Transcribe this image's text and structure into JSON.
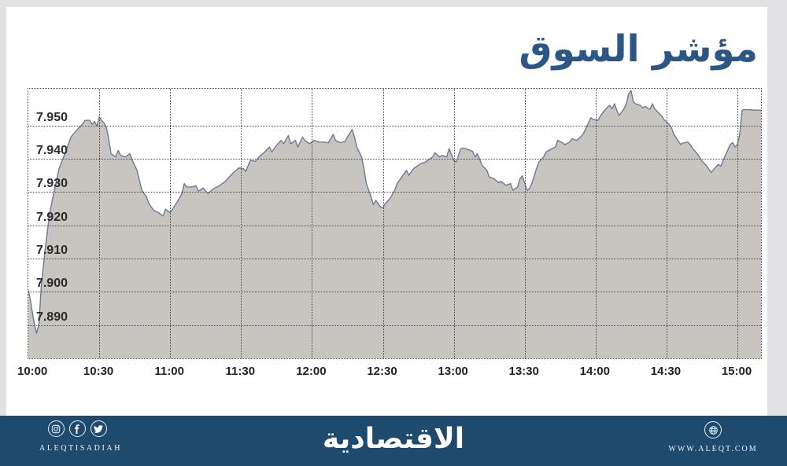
{
  "header": {
    "title": "مؤشر السوق"
  },
  "colors": {
    "page_bg": "#e2e2e4",
    "card_bg": "#ffffff",
    "title_blue": "#2b5685",
    "footer_navy": "#1e4a6e",
    "area_fill": "#c8c4bf",
    "area_stroke": "#6b7994",
    "grid": "#4a4a4a",
    "tick_text": "#2b2b2b"
  },
  "chart_data": {
    "type": "area",
    "title": "مؤشر السوق",
    "xlabel": "",
    "ylabel": "",
    "legend": false,
    "grid": "dotted",
    "x_axis": {
      "unit": "time",
      "range_minutes": [
        0,
        310
      ],
      "ticks": [
        {
          "t": 0,
          "label": "10:00"
        },
        {
          "t": 30,
          "label": "10:30"
        },
        {
          "t": 60,
          "label": "11:00"
        },
        {
          "t": 90,
          "label": "11:30"
        },
        {
          "t": 120,
          "label": "12:00"
        },
        {
          "t": 150,
          "label": "12:30"
        },
        {
          "t": 180,
          "label": "13:00"
        },
        {
          "t": 210,
          "label": "13:30"
        },
        {
          "t": 240,
          "label": "14:00"
        },
        {
          "t": 270,
          "label": "14:30"
        },
        {
          "t": 300,
          "label": "15:00"
        }
      ]
    },
    "y_axis": {
      "range": [
        7.88,
        7.961
      ],
      "ticks": [
        {
          "v": 7.95,
          "label": "7.950"
        },
        {
          "v": 7.94,
          "label": "7.940"
        },
        {
          "v": 7.93,
          "label": "7.930"
        },
        {
          "v": 7.92,
          "label": "7.920"
        },
        {
          "v": 7.91,
          "label": "7.910"
        },
        {
          "v": 7.9,
          "label": "7.900"
        },
        {
          "v": 7.89,
          "label": "7.890"
        }
      ]
    },
    "series": [
      {
        "name": "market-index",
        "points": [
          [
            0,
            7.9005
          ],
          [
            1,
            7.897
          ],
          [
            2,
            7.8925
          ],
          [
            3,
            7.889
          ],
          [
            3.5,
            7.8875
          ],
          [
            4.5,
            7.8905
          ],
          [
            5.5,
            7.902
          ],
          [
            7,
            7.912
          ],
          [
            9,
            7.9235
          ],
          [
            11,
            7.9305
          ],
          [
            13,
            7.937
          ],
          [
            16,
            7.9425
          ],
          [
            18,
            7.9465
          ],
          [
            21,
            7.949
          ],
          [
            23,
            7.9505
          ],
          [
            24,
            7.9515
          ],
          [
            26,
            7.9515
          ],
          [
            27,
            7.9503
          ],
          [
            28,
            7.9512
          ],
          [
            29,
            7.9498
          ],
          [
            30,
            7.9525
          ],
          [
            31,
            7.9515
          ],
          [
            32,
            7.9508
          ],
          [
            33,
            7.9495
          ],
          [
            34,
            7.946
          ],
          [
            35,
            7.9415
          ],
          [
            37,
            7.9405
          ],
          [
            38,
            7.9425
          ],
          [
            39,
            7.941
          ],
          [
            41,
            7.9405
          ],
          [
            43,
            7.9415
          ],
          [
            44,
            7.9395
          ],
          [
            46,
            7.9365
          ],
          [
            48,
            7.9305
          ],
          [
            50,
            7.9285
          ],
          [
            51,
            7.9265
          ],
          [
            53,
            7.9245
          ],
          [
            55,
            7.9238
          ],
          [
            57,
            7.9228
          ],
          [
            58,
            7.9248
          ],
          [
            60,
            7.9238
          ],
          [
            61,
            7.9248
          ],
          [
            63,
            7.927
          ],
          [
            65,
            7.9295
          ],
          [
            66,
            7.9325
          ],
          [
            67,
            7.9315
          ],
          [
            69,
            7.9315
          ],
          [
            71,
            7.9318
          ],
          [
            72,
            7.9302
          ],
          [
            74,
            7.9312
          ],
          [
            76,
            7.9295
          ],
          [
            78,
            7.9308
          ],
          [
            81,
            7.932
          ],
          [
            83,
            7.933
          ],
          [
            85,
            7.9345
          ],
          [
            87,
            7.936
          ],
          [
            89,
            7.9372
          ],
          [
            91,
            7.937
          ],
          [
            92,
            7.9362
          ],
          [
            93,
            7.938
          ],
          [
            94,
            7.9395
          ],
          [
            96,
            7.9392
          ],
          [
            98,
            7.9408
          ],
          [
            100,
            7.942
          ],
          [
            102,
            7.9435
          ],
          [
            103,
            7.942
          ],
          [
            105,
            7.944
          ],
          [
            107,
            7.9455
          ],
          [
            108,
            7.9445
          ],
          [
            110,
            7.947
          ],
          [
            111,
            7.9445
          ],
          [
            113,
            7.9455
          ],
          [
            114,
            7.9435
          ],
          [
            116,
            7.9465
          ],
          [
            117,
            7.9455
          ],
          [
            119,
            7.9445
          ],
          [
            121,
            7.9455
          ],
          [
            123,
            7.945
          ],
          [
            125,
            7.945
          ],
          [
            127,
            7.9448
          ],
          [
            129,
            7.9473
          ],
          [
            130,
            7.9455
          ],
          [
            132,
            7.9448
          ],
          [
            134,
            7.9452
          ],
          [
            135,
            7.9465
          ],
          [
            137,
            7.9488
          ],
          [
            138,
            7.9465
          ],
          [
            139,
            7.9435
          ],
          [
            141,
            7.9405
          ],
          [
            142,
            7.937
          ],
          [
            143,
            7.9325
          ],
          [
            145,
            7.9285
          ],
          [
            146,
            7.9262
          ],
          [
            147,
            7.9275
          ],
          [
            149,
            7.9255
          ],
          [
            150,
            7.9252
          ],
          [
            151,
            7.9265
          ],
          [
            153,
            7.928
          ],
          [
            155,
            7.9305
          ],
          [
            156,
            7.9325
          ],
          [
            158,
            7.9345
          ],
          [
            160,
            7.9365
          ],
          [
            161,
            7.935
          ],
          [
            163,
            7.937
          ],
          [
            164,
            7.9375
          ],
          [
            166,
            7.9385
          ],
          [
            168,
            7.939
          ],
          [
            169,
            7.9395
          ],
          [
            171,
            7.9405
          ],
          [
            172,
            7.9418
          ],
          [
            174,
            7.9405
          ],
          [
            175,
            7.941
          ],
          [
            177,
            7.9405
          ],
          [
            178,
            7.943
          ],
          [
            180,
            7.9395
          ],
          [
            181,
            7.939
          ],
          [
            183,
            7.943
          ],
          [
            184,
            7.9432
          ],
          [
            186,
            7.9428
          ],
          [
            188,
            7.9422
          ],
          [
            189,
            7.9405
          ],
          [
            190,
            7.9415
          ],
          [
            192,
            7.938
          ],
          [
            194,
            7.9365
          ],
          [
            195,
            7.9345
          ],
          [
            197,
            7.934
          ],
          [
            199,
            7.9328
          ],
          [
            200,
            7.9332
          ],
          [
            202,
            7.932
          ],
          [
            204,
            7.9325
          ],
          [
            205,
            7.9305
          ],
          [
            207,
            7.9315
          ],
          [
            208,
            7.934
          ],
          [
            209,
            7.9348
          ],
          [
            211,
            7.9305
          ],
          [
            212,
            7.931
          ],
          [
            213,
            7.9325
          ],
          [
            215,
            7.937
          ],
          [
            216,
            7.939
          ],
          [
            218,
            7.9405
          ],
          [
            219,
            7.942
          ],
          [
            221,
            7.9428
          ],
          [
            223,
            7.9435
          ],
          [
            224,
            7.9455
          ],
          [
            226,
            7.9448
          ],
          [
            227,
            7.9442
          ],
          [
            229,
            7.945
          ],
          [
            230,
            7.946
          ],
          [
            232,
            7.9455
          ],
          [
            234,
            7.9468
          ],
          [
            235,
            7.9478
          ],
          [
            237,
            7.9508
          ],
          [
            238,
            7.9523
          ],
          [
            239,
            7.9518
          ],
          [
            241,
            7.9515
          ],
          [
            242,
            7.9528
          ],
          [
            243,
            7.9538
          ],
          [
            245,
            7.9555
          ],
          [
            246,
            7.956
          ],
          [
            247,
            7.955
          ],
          [
            248,
            7.9565
          ],
          [
            249,
            7.9545
          ],
          [
            250,
            7.953
          ],
          [
            252,
            7.955
          ],
          [
            253,
            7.9565
          ],
          [
            254,
            7.9595
          ],
          [
            255,
            7.9605
          ],
          [
            256,
            7.957
          ],
          [
            257,
            7.9565
          ],
          [
            259,
            7.956
          ],
          [
            260,
            7.9553
          ],
          [
            261,
            7.9557
          ],
          [
            263,
            7.9548
          ],
          [
            264,
            7.9565
          ],
          [
            265,
            7.955
          ],
          [
            267,
            7.9535
          ],
          [
            268,
            7.9528
          ],
          [
            269,
            7.9517
          ],
          [
            271,
            7.9504
          ],
          [
            272,
            7.9495
          ],
          [
            273,
            7.9475
          ],
          [
            275,
            7.9453
          ],
          [
            276,
            7.9443
          ],
          [
            277,
            7.9447
          ],
          [
            279,
            7.945
          ],
          [
            280,
            7.9443
          ],
          [
            281,
            7.9432
          ],
          [
            283,
            7.9415
          ],
          [
            284,
            7.9405
          ],
          [
            285,
            7.9393
          ],
          [
            287,
            7.9378
          ],
          [
            288,
            7.9368
          ],
          [
            289,
            7.9358
          ],
          [
            290,
            7.9368
          ],
          [
            292,
            7.9383
          ],
          [
            293,
            7.9377
          ],
          [
            294,
            7.9395
          ],
          [
            295,
            7.9412
          ],
          [
            297,
            7.9443
          ],
          [
            298,
            7.9448
          ],
          [
            299,
            7.9435
          ],
          [
            300,
            7.9442
          ],
          [
            301,
            7.9475
          ],
          [
            302,
            7.9546
          ],
          [
            304,
            7.9548
          ],
          [
            307,
            7.9546
          ],
          [
            310,
            7.9546
          ]
        ]
      }
    ]
  },
  "footer": {
    "brand_latin": "ALEQTISADIAH",
    "brand_arabic": "الاقتصادية",
    "website": "WWW.ALEQT.COM",
    "social_icons": [
      "instagram-icon",
      "facebook-icon",
      "twitter-icon"
    ],
    "site_icon": "globe-icon"
  }
}
